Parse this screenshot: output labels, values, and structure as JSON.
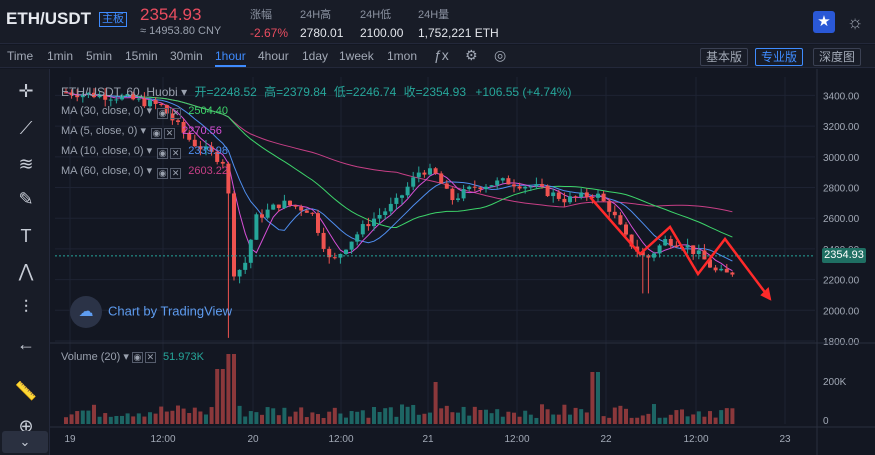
{
  "header": {
    "pair": "ETH/USDT",
    "pair_badge": "主板",
    "price": "2354.93",
    "price_cny": "≈ 14953.80 CNY",
    "stats": [
      {
        "label": "涨幅",
        "value": "-2.67%"
      },
      {
        "label": "24H高",
        "value": "2780.01"
      },
      {
        "label": "24H低",
        "value": "2100.00"
      },
      {
        "label": "24H量",
        "value": "1,752,221 ETH"
      }
    ],
    "fav_icon": "star-icon",
    "theme_icon": "sun-icon"
  },
  "toolbar": {
    "time_label": "Time",
    "intervals": [
      "1min",
      "5min",
      "15min",
      "30min",
      "1hour",
      "4hour",
      "1day",
      "1week",
      "1mon"
    ],
    "active_interval": "1hour",
    "views": [
      "基本版",
      "专业版",
      "深度图"
    ],
    "active_view": "专业版"
  },
  "tools": [
    "crosshair-icon",
    "trend-line-icon",
    "fib-icon",
    "brush-icon",
    "text-icon",
    "pattern-icon",
    "measure-icon",
    "back-arrow-icon",
    "ruler-icon",
    "zoom-icon"
  ],
  "legend": {
    "title": "ETH/USDT, 60, Huobi",
    "open": "开=2248.52",
    "high": "高=2379.84",
    "low": "低=2246.74",
    "close": "收=2354.93",
    "change": "+106.55 (+4.74%)",
    "ma": [
      {
        "label": "MA (30, close, 0)",
        "value": "2504.40",
        "color": "#3dd46a"
      },
      {
        "label": "MA (5, close, 0)",
        "value": "2270.56",
        "color": "#d64fd6"
      },
      {
        "label": "MA (10, close, 0)",
        "value": "2339.98",
        "color": "#4f8ff0"
      },
      {
        "label": "MA (60, close, 0)",
        "value": "2603.22",
        "color": "#c73f86"
      }
    ],
    "volume_label": "Volume (20)",
    "volume_value": "51.973K"
  },
  "watermark": "Chart by TradingView",
  "current_price_tag": "2354.93",
  "chart_data": {
    "type": "candlestick",
    "y_ticks": [
      3400,
      3200,
      3000,
      2800,
      2600,
      2400,
      2200,
      2000,
      1800
    ],
    "y_tick_labels": [
      "3400.00",
      "3200.00",
      "3000.00",
      "2800.00",
      "2600.00",
      "2400.00",
      "2200.00",
      "2000.00",
      "1800.00"
    ],
    "ylim": [
      1800,
      3520
    ],
    "volume_ticks": [
      "200K",
      "0"
    ],
    "x_tick_labels": [
      "19",
      "12:00",
      "20",
      "12:00",
      "21",
      "12:00",
      "22",
      "12:00",
      "23"
    ],
    "colors": {
      "up": "#26a69a",
      "down": "#ef5350"
    }
  }
}
